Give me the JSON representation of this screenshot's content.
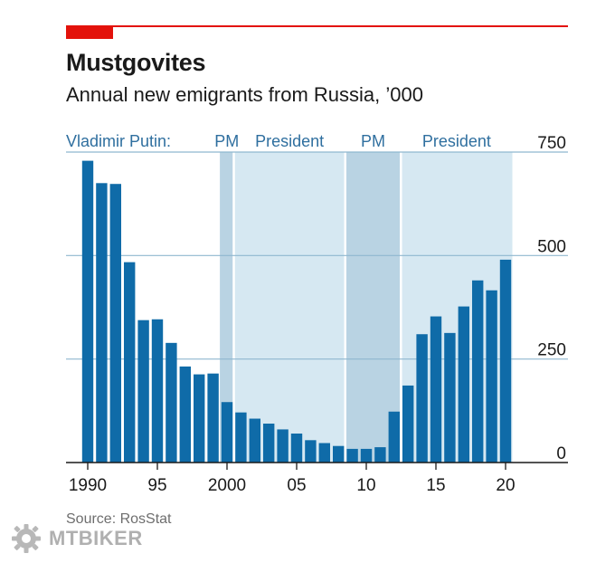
{
  "title": "Mustgovites",
  "subtitle": "Annual new emigrants from Russia, ’000",
  "source": "Source: RosStat",
  "watermark": "MTBIKER",
  "colors": {
    "bar": "#0f6ba8",
    "president_shade": "#d6e8f2",
    "pm_shade": "#b9d3e3",
    "grid": "#8fb7cf",
    "accent": "#e3120b",
    "period_text": "#2f6f9f"
  },
  "periods": {
    "lead_label": "Vladimir Putin:",
    "spans": [
      {
        "label": "PM",
        "kind": "pm",
        "start": 1999,
        "end": 2000
      },
      {
        "label": "President",
        "kind": "president",
        "start": 2000,
        "end": 2008
      },
      {
        "label": "PM",
        "kind": "pm",
        "start": 2008,
        "end": 2012
      },
      {
        "label": "President",
        "kind": "president",
        "start": 2012,
        "end": 2020
      }
    ]
  },
  "chart_data": {
    "type": "bar",
    "title": "Mustgovites",
    "subtitle": "Annual new emigrants from Russia, ’000",
    "xlabel": "",
    "ylabel": "",
    "ylim": [
      0,
      750
    ],
    "yticks": [
      0,
      250,
      500,
      750
    ],
    "ytick_side": "right",
    "grid": true,
    "xticks": [
      1990,
      1995,
      2000,
      2005,
      2010,
      2015,
      2020
    ],
    "xtick_labels": [
      "1990",
      "95",
      "2000",
      "05",
      "10",
      "15",
      "20"
    ],
    "years": [
      1990,
      1991,
      1992,
      1993,
      1994,
      1995,
      1996,
      1997,
      1998,
      1999,
      2000,
      2001,
      2002,
      2003,
      2004,
      2005,
      2006,
      2007,
      2008,
      2009,
      2010,
      2011,
      2012,
      2013,
      2014,
      2015,
      2016,
      2017,
      2018,
      2019,
      2020
    ],
    "values": [
      729,
      675,
      673,
      484,
      344,
      346,
      289,
      232,
      213,
      215,
      146,
      121,
      106,
      94,
      80,
      70,
      54,
      47,
      40,
      33,
      33,
      37,
      123,
      186,
      310,
      353,
      313,
      377,
      440,
      416,
      490
    ]
  }
}
